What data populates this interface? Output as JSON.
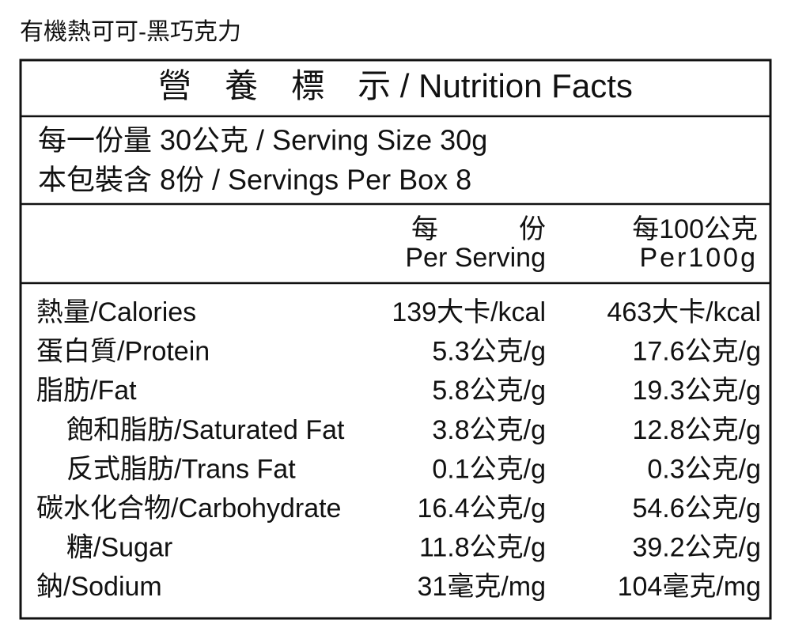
{
  "title": "有機熱可可-黑巧克力",
  "table": {
    "header": "營　養　標　示 / Nutrition Facts",
    "serving": [
      "每一份量  30公克 / Serving Size 30g",
      "本包裝含  8份 / Servings Per Box 8"
    ],
    "columns": [
      [
        "每　　　份",
        "Per Serving"
      ],
      [
        "每100公克",
        "Per100g"
      ]
    ],
    "rows": [
      {
        "label": "熱量/Calories",
        "values": [
          "139大卡/kcal",
          "463大卡/kcal"
        ]
      },
      {
        "label": "蛋白質/Protein",
        "values": [
          "5.3公克/g",
          "17.6公克/g"
        ]
      },
      {
        "label": "脂肪/Fat",
        "values": [
          "5.8公克/g",
          "19.3公克/g"
        ]
      },
      {
        "label": "飽和脂肪/Saturated Fat",
        "values": [
          "3.8公克/g",
          "12.8公克/g"
        ],
        "indent": true
      },
      {
        "label": "反式脂肪/Trans Fat",
        "values": [
          "0.1公克/g",
          "0.3公克/g"
        ],
        "indent": true
      },
      {
        "label": "碳水化合物/Carbohydrate",
        "values": [
          "16.4公克/g",
          "54.6公克/g"
        ]
      },
      {
        "label": "糖/Sugar",
        "values": [
          "11.8公克/g",
          "39.2公克/g"
        ],
        "indent": true
      },
      {
        "label": "鈉/Sodium",
        "values": [
          "31毫克/mg",
          "104毫克/mg"
        ]
      }
    ]
  }
}
